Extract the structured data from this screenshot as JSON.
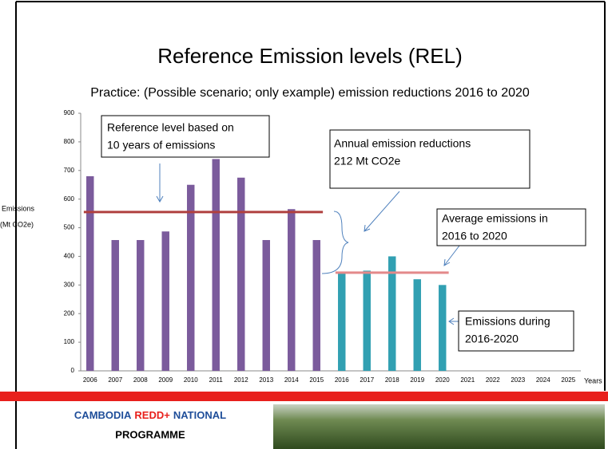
{
  "chart_data": {
    "type": "bar",
    "title": "Reference Emission levels (REL)",
    "subtitle": "Practice: (Possible scenario; only example) emission reductions 2016 to 2020",
    "y_label": [
      "Emissions",
      "(Mt CO2e)"
    ],
    "x_label": "Years",
    "categories": [
      "2006",
      "2007",
      "2008",
      "2009",
      "2010",
      "2011",
      "2012",
      "2013",
      "2014",
      "2015",
      "2016",
      "2017",
      "2018",
      "2019",
      "2020",
      "2021",
      "2022",
      "2023",
      "2024",
      "2025"
    ],
    "series": [
      {
        "color": "#7b5b9c",
        "values": [
          680,
          457,
          457,
          487,
          650,
          740,
          675,
          457,
          565,
          457,
          null,
          null,
          null,
          null,
          null,
          null,
          null,
          null,
          null,
          null
        ],
        "level": 555,
        "level_color": "#b0403f"
      },
      {
        "color": "#31a0b2",
        "values": [
          null,
          null,
          null,
          null,
          null,
          null,
          null,
          null,
          null,
          null,
          340,
          350,
          400,
          320,
          300,
          null,
          null,
          null,
          null,
          null
        ],
        "level": 343,
        "level_color": "#e3898a"
      }
    ],
    "ylim": [
      0,
      900
    ],
    "yticks": [
      0,
      100,
      200,
      300,
      400,
      500,
      600,
      700,
      800,
      900
    ],
    "annotations": [
      [
        "Reference level based on",
        "10 years of emissions"
      ],
      [
        "Annual emission reductions",
        "212  Mt CO2e"
      ],
      [
        "Average emissions in",
        "2016 to 2020"
      ],
      [
        "Emissions during",
        "2016-2020"
      ]
    ]
  },
  "footer": {
    "org": [
      "CAMBODIA",
      "REDD+",
      "NATIONAL",
      "PROGRAMME"
    ]
  }
}
